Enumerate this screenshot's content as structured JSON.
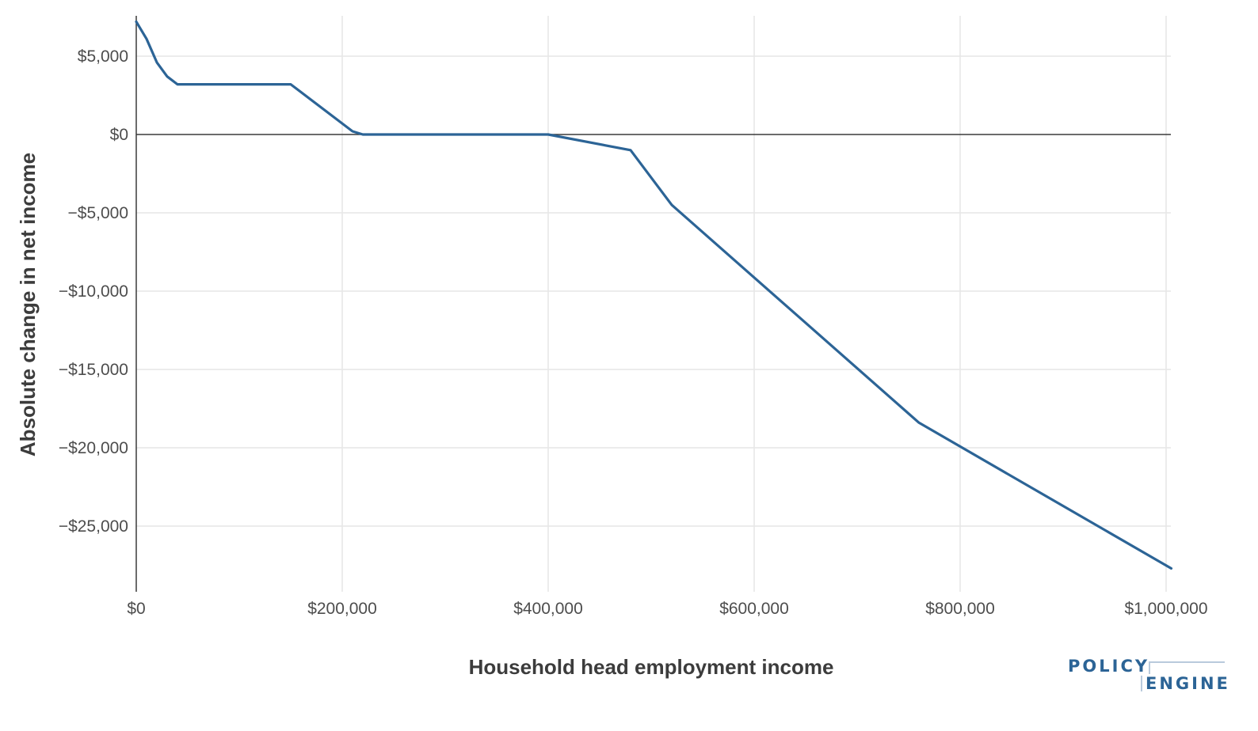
{
  "chart_data": {
    "type": "line",
    "xlabel": "Household head employment income",
    "ylabel": "Absolute change in net income",
    "xlim": [
      0,
      1005000
    ],
    "ylim": [
      -29000,
      7500
    ],
    "x_ticks": [
      0,
      200000,
      400000,
      600000,
      800000,
      1000000
    ],
    "x_tick_labels": [
      "$0",
      "$200,000",
      "$400,000",
      "$600,000",
      "$800,000",
      "$1,000,000"
    ],
    "y_ticks": [
      5000,
      0,
      -5000,
      -10000,
      -15000,
      -20000,
      -25000
    ],
    "y_tick_labels": [
      "$5,000",
      "$0",
      "−$5,000",
      "−$10,000",
      "−$15,000",
      "−$20,000",
      "−$25,000"
    ],
    "grid": true,
    "series": [
      {
        "color": "#2c6496",
        "x": [
          0,
          10000,
          20000,
          30000,
          40000,
          150000,
          210000,
          220000,
          400000,
          480000,
          520000,
          760000,
          1005000
        ],
        "y": [
          7200,
          6100,
          4600,
          3700,
          3200,
          3200,
          200,
          0,
          0,
          -1000,
          -4500,
          -18400,
          -27700
        ]
      }
    ]
  },
  "logo": {
    "line1": "POLICY",
    "line2": "ENGINE"
  }
}
